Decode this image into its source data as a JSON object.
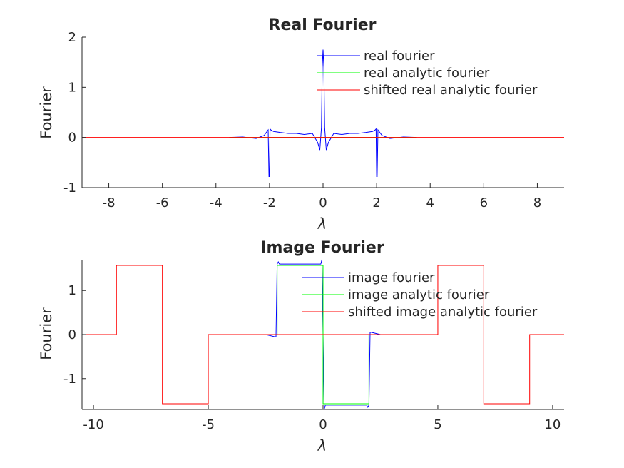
{
  "chart_data": [
    {
      "type": "line",
      "title": "Real Fourier",
      "xlabel": "λ",
      "ylabel": "Fourier",
      "xlim": [
        -9,
        9
      ],
      "ylim": [
        -1,
        2
      ],
      "xticks": [
        -8,
        -6,
        -4,
        -2,
        0,
        2,
        4,
        6,
        8
      ],
      "xtick_labels": [
        "-8",
        "-6",
        "-4",
        "-2",
        "0",
        "2",
        "4",
        "6",
        "8"
      ],
      "yticks": [
        -1,
        0,
        1,
        2
      ],
      "ytick_labels": [
        "-1",
        "0",
        "1",
        "2"
      ],
      "legend_position": "top-center",
      "series": [
        {
          "name": "real fourier",
          "color": "#0000ff",
          "x": [
            -3.5,
            -3.0,
            -2.5,
            -2.2,
            -2.05,
            -2.02,
            -2.0,
            -1.98,
            -1.95,
            -1.85,
            -1.6,
            -1.3,
            -1.0,
            -0.7,
            -0.4,
            -0.2,
            -0.12,
            -0.06,
            -0.03,
            0.0,
            0.03,
            0.06,
            0.12,
            0.2,
            0.4,
            0.7,
            1.0,
            1.3,
            1.6,
            1.85,
            1.95,
            1.98,
            2.0,
            2.02,
            2.05,
            2.2,
            2.5,
            3.0,
            3.5
          ],
          "y": [
            0.0,
            0.01,
            -0.02,
            0.04,
            0.15,
            -0.78,
            -0.78,
            0.17,
            0.15,
            0.12,
            0.1,
            0.08,
            0.08,
            0.06,
            0.08,
            -0.1,
            -0.25,
            0.2,
            1.4,
            1.75,
            1.4,
            0.2,
            -0.25,
            -0.1,
            0.08,
            0.06,
            0.08,
            0.08,
            0.1,
            0.12,
            0.15,
            0.17,
            -0.78,
            -0.78,
            0.15,
            0.04,
            -0.02,
            0.01,
            0.0
          ]
        },
        {
          "name": "real analytic fourier",
          "color": "#00ff00",
          "x": [
            -3.5,
            3.5
          ],
          "y": [
            0.0,
            0.0
          ]
        },
        {
          "name": "shifted real analytic fourier",
          "color": "#ff0000",
          "x": [
            -9,
            9
          ],
          "y": [
            0.0,
            0.0
          ]
        }
      ]
    },
    {
      "type": "line",
      "title": "Image Fourier",
      "xlabel": "λ",
      "ylabel": "Fourier",
      "xlim": [
        -10.5,
        10.5
      ],
      "ylim": [
        -1.7,
        1.7
      ],
      "xticks": [
        -10,
        -5,
        0,
        5,
        10
      ],
      "xtick_labels": [
        "-10",
        "-5",
        "0",
        "5",
        "10"
      ],
      "yticks": [
        -1,
        0,
        1
      ],
      "ytick_labels": [
        "-1",
        "0",
        "1"
      ],
      "legend_position": "top-center",
      "series": [
        {
          "name": "image fourier",
          "color": "#0000ff",
          "x": [
            -3.5,
            -2.5,
            -2.1,
            -2.05,
            -2.0,
            -1.95,
            -1.9,
            -1.5,
            -1.0,
            -0.5,
            -0.1,
            -0.05,
            0.0,
            0.05,
            0.1,
            0.5,
            1.0,
            1.5,
            1.9,
            1.95,
            2.0,
            2.05,
            2.1,
            2.5,
            3.5
          ],
          "y": [
            0.0,
            0.0,
            -0.05,
            -0.05,
            1.6,
            1.65,
            1.6,
            1.6,
            1.6,
            1.6,
            1.6,
            1.7,
            0.0,
            -1.7,
            -1.6,
            -1.6,
            -1.6,
            -1.6,
            -1.6,
            -1.65,
            -1.6,
            0.05,
            0.05,
            0.0,
            0.0
          ]
        },
        {
          "name": "image analytic fourier",
          "color": "#00ff00",
          "x": [
            -3.5,
            -2.0,
            -2.0,
            0.0,
            0.0,
            2.0,
            2.0,
            3.5
          ],
          "y": [
            0.0,
            0.0,
            1.5708,
            1.5708,
            -1.5708,
            -1.5708,
            0.0,
            0.0
          ]
        },
        {
          "name": "shifted image analytic fourier",
          "color": "#ff0000",
          "x": [
            -10.5,
            -9.0,
            -9.0,
            -7.0,
            -7.0,
            -5.0,
            -5.0,
            5.0,
            5.0,
            7.0,
            7.0,
            9.0,
            9.0,
            10.5
          ],
          "y": [
            0.0,
            0.0,
            1.5708,
            1.5708,
            -1.5708,
            -1.5708,
            0.0,
            0.0,
            1.5708,
            1.5708,
            -1.5708,
            -1.5708,
            0.0,
            0.0
          ]
        }
      ]
    }
  ]
}
